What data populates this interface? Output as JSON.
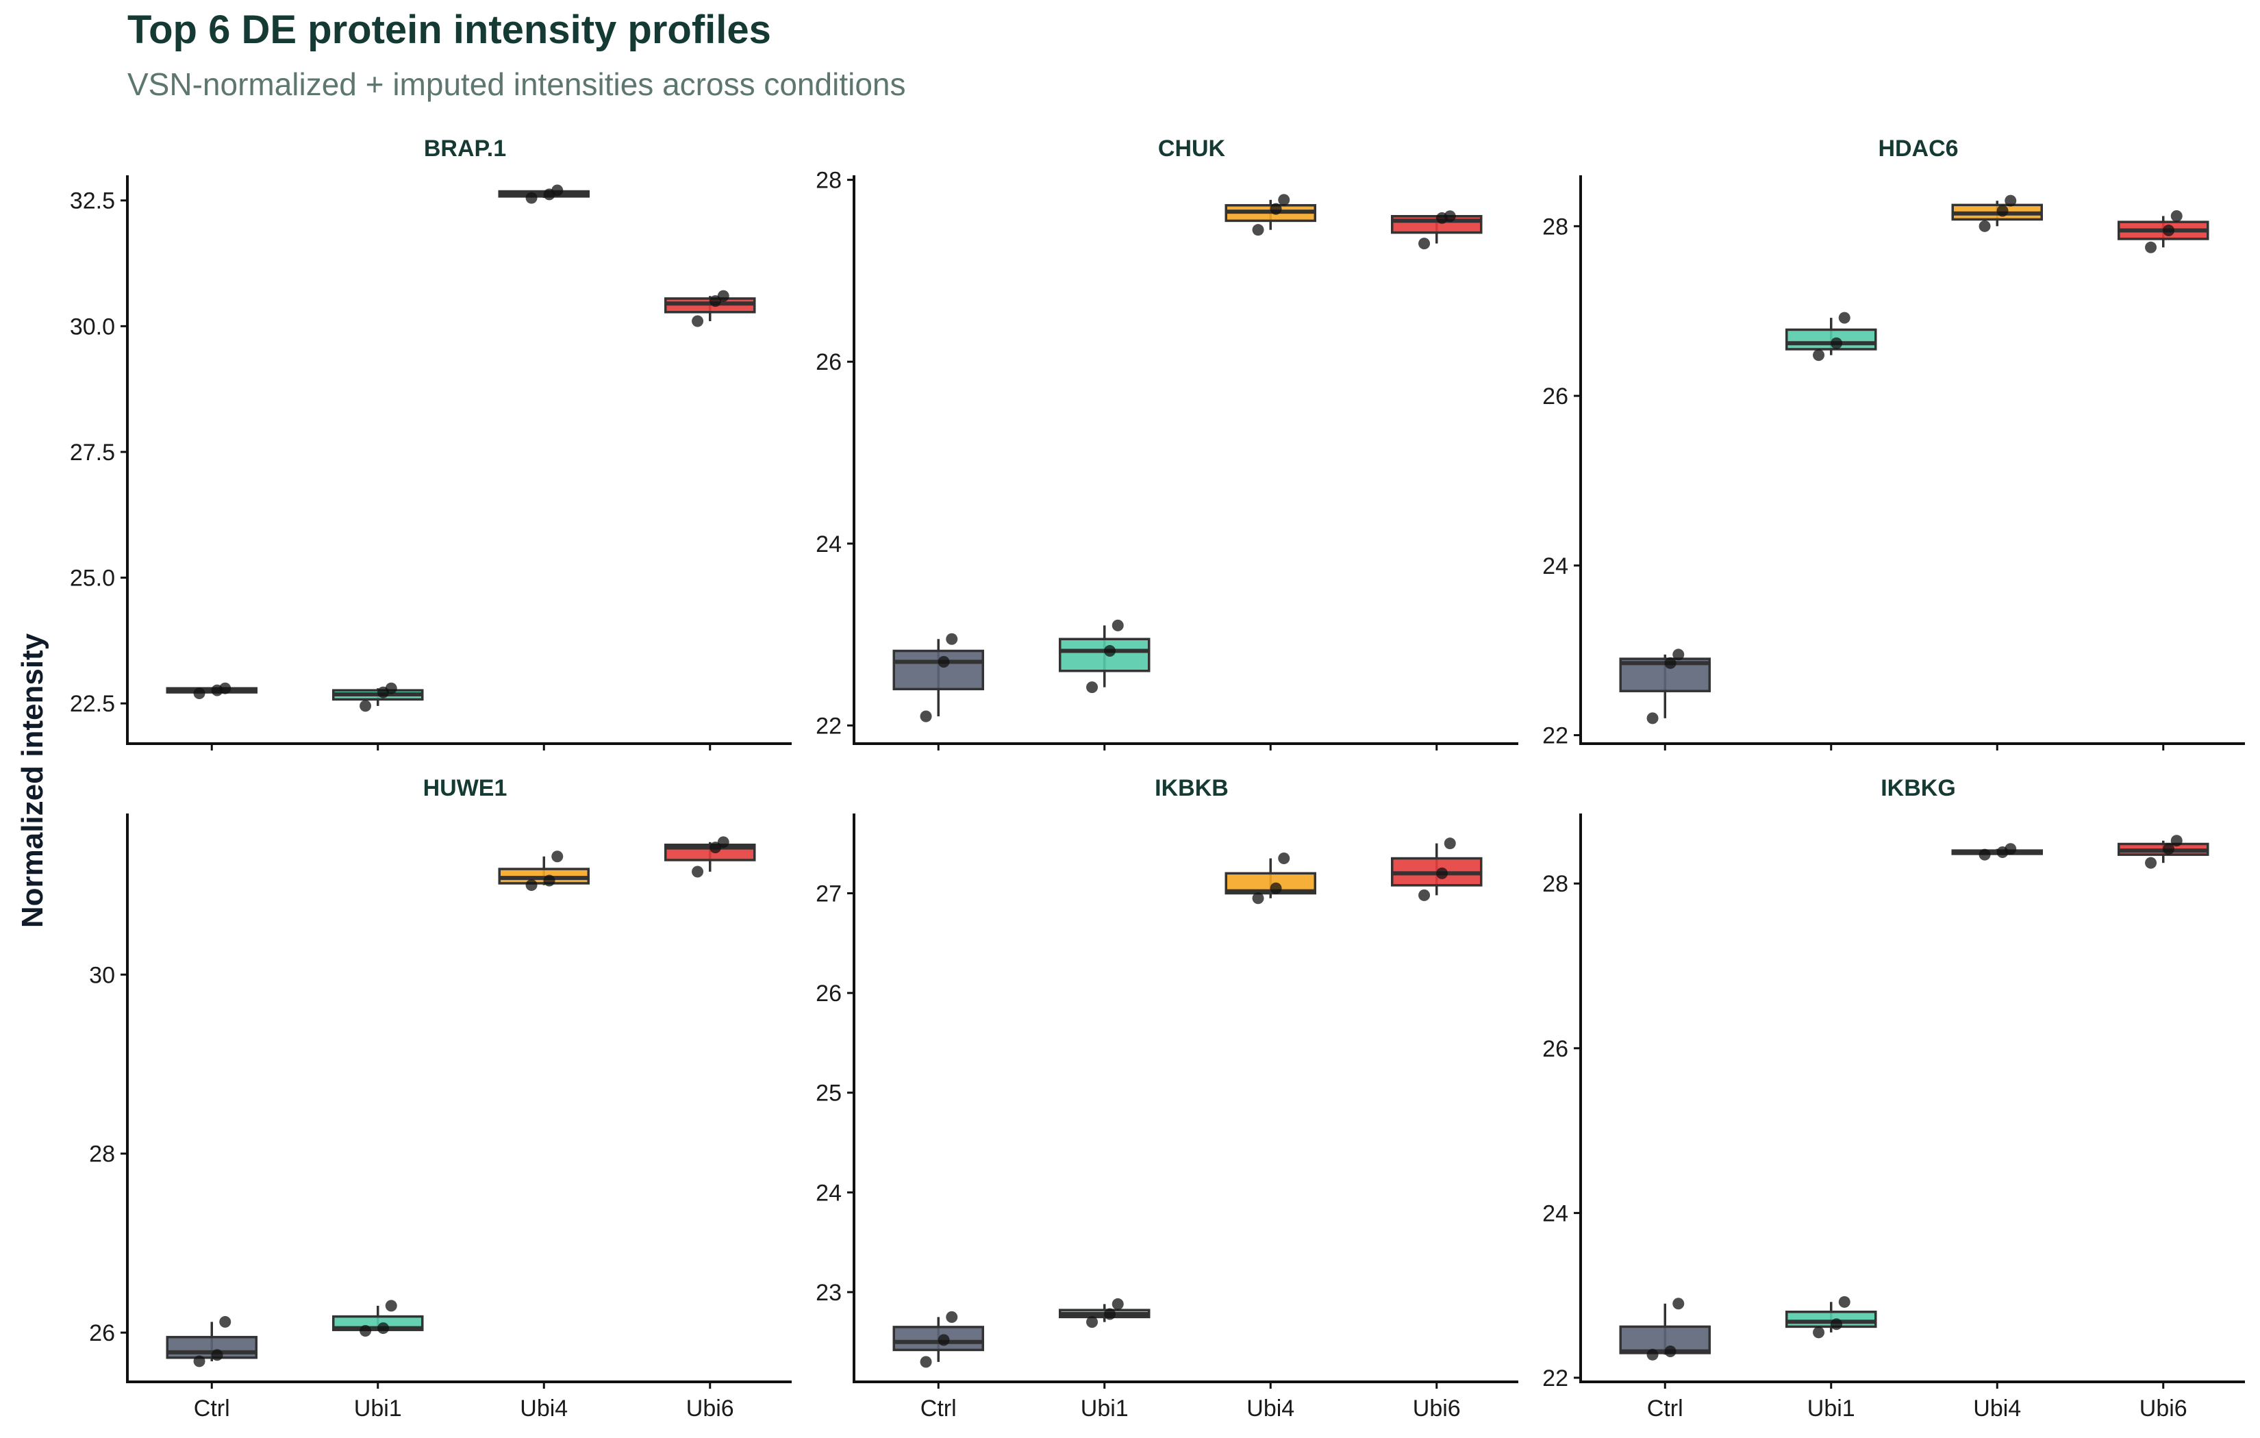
{
  "title": "Top 6 DE protein intensity profiles",
  "subtitle": "VSN-normalized + imputed intensities across conditions",
  "colors": {
    "Ctrl": "#5b6477",
    "Ubi1": "#55ccaa",
    "Ubi4": "#f5a623",
    "Ubi6": "#e63c3c"
  },
  "chart_data": {
    "type": "box",
    "ylabel": "Normalized intensity",
    "xlabel": "",
    "categories": [
      "Ctrl",
      "Ubi1",
      "Ubi4",
      "Ubi6"
    ],
    "facets": [
      {
        "name": "BRAP.1",
        "ylim": [
          21.7,
          33.0
        ],
        "yticks": [
          22.5,
          25.0,
          27.5,
          30.0,
          32.5
        ],
        "yticklabels": [
          "22.5",
          "25.0",
          "27.5",
          "30.0",
          "32.5"
        ],
        "boxes": [
          {
            "q1": 22.72,
            "median": 22.76,
            "q3": 22.8,
            "min": 22.7,
            "max": 22.8,
            "points": [
              22.7,
              22.76,
              22.8
            ]
          },
          {
            "q1": 22.58,
            "median": 22.68,
            "q3": 22.76,
            "min": 22.45,
            "max": 22.8,
            "points": [
              22.45,
              22.72,
              22.8
            ]
          },
          {
            "q1": 32.58,
            "median": 32.62,
            "q3": 32.68,
            "min": 32.55,
            "max": 32.7,
            "points": [
              32.55,
              32.62,
              32.7
            ]
          },
          {
            "q1": 30.28,
            "median": 30.45,
            "q3": 30.55,
            "min": 30.1,
            "max": 30.6,
            "points": [
              30.1,
              30.5,
              30.6
            ]
          }
        ]
      },
      {
        "name": "CHUK",
        "ylim": [
          21.8,
          28.05
        ],
        "yticks": [
          22,
          24,
          26,
          28
        ],
        "yticklabels": [
          "22",
          "24",
          "26",
          "28"
        ],
        "boxes": [
          {
            "q1": 22.4,
            "median": 22.7,
            "q3": 22.82,
            "min": 22.1,
            "max": 22.95,
            "points": [
              22.1,
              22.7,
              22.95
            ]
          },
          {
            "q1": 22.6,
            "median": 22.82,
            "q3": 22.95,
            "min": 22.42,
            "max": 23.1,
            "points": [
              22.42,
              22.82,
              23.1
            ]
          },
          {
            "q1": 27.55,
            "median": 27.65,
            "q3": 27.72,
            "min": 27.45,
            "max": 27.78,
            "points": [
              27.45,
              27.68,
              27.78
            ]
          },
          {
            "q1": 27.42,
            "median": 27.55,
            "q3": 27.6,
            "min": 27.3,
            "max": 27.6,
            "points": [
              27.3,
              27.58,
              27.6
            ]
          }
        ]
      },
      {
        "name": "HDAC6",
        "ylim": [
          21.9,
          28.6
        ],
        "yticks": [
          22,
          24,
          26,
          28
        ],
        "yticklabels": [
          "22",
          "24",
          "26",
          "28"
        ],
        "boxes": [
          {
            "q1": 22.52,
            "median": 22.85,
            "q3": 22.9,
            "min": 22.2,
            "max": 22.95,
            "points": [
              22.2,
              22.85,
              22.95
            ]
          },
          {
            "q1": 26.55,
            "median": 26.62,
            "q3": 26.78,
            "min": 26.48,
            "max": 26.92,
            "points": [
              26.48,
              26.62,
              26.92
            ]
          },
          {
            "q1": 28.08,
            "median": 28.15,
            "q3": 28.25,
            "min": 28.0,
            "max": 28.3,
            "points": [
              28.0,
              28.18,
              28.3
            ]
          },
          {
            "q1": 27.85,
            "median": 27.95,
            "q3": 28.05,
            "min": 27.75,
            "max": 28.12,
            "points": [
              27.75,
              27.95,
              28.12
            ]
          }
        ]
      },
      {
        "name": "HUWE1",
        "ylim": [
          25.45,
          31.8
        ],
        "yticks": [
          26,
          28,
          30
        ],
        "yticklabels": [
          "26",
          "28",
          "30"
        ],
        "boxes": [
          {
            "q1": 25.72,
            "median": 25.78,
            "q3": 25.95,
            "min": 25.68,
            "max": 26.12,
            "points": [
              25.68,
              25.75,
              26.12
            ]
          },
          {
            "q1": 26.03,
            "median": 26.05,
            "q3": 26.18,
            "min": 26.02,
            "max": 26.3,
            "points": [
              26.02,
              26.05,
              26.3
            ]
          },
          {
            "q1": 31.02,
            "median": 31.08,
            "q3": 31.18,
            "min": 31.0,
            "max": 31.32,
            "points": [
              31.0,
              31.05,
              31.32
            ]
          },
          {
            "q1": 31.28,
            "median": 31.42,
            "q3": 31.45,
            "min": 31.15,
            "max": 31.48,
            "points": [
              31.15,
              31.42,
              31.48
            ]
          }
        ]
      },
      {
        "name": "IKBKB",
        "ylim": [
          22.1,
          27.8
        ],
        "yticks": [
          23,
          24,
          25,
          26,
          27
        ],
        "yticklabels": [
          "23",
          "24",
          "25",
          "26",
          "27"
        ],
        "boxes": [
          {
            "q1": 22.42,
            "median": 22.5,
            "q3": 22.65,
            "min": 22.3,
            "max": 22.75,
            "points": [
              22.3,
              22.52,
              22.75
            ]
          },
          {
            "q1": 22.75,
            "median": 22.78,
            "q3": 22.82,
            "min": 22.7,
            "max": 22.88,
            "points": [
              22.7,
              22.78,
              22.88
            ]
          },
          {
            "q1": 27.0,
            "median": 27.02,
            "q3": 27.2,
            "min": 26.95,
            "max": 27.35,
            "points": [
              26.95,
              27.05,
              27.35
            ]
          },
          {
            "q1": 27.08,
            "median": 27.2,
            "q3": 27.35,
            "min": 26.98,
            "max": 27.5,
            "points": [
              26.98,
              27.2,
              27.5
            ]
          }
        ]
      },
      {
        "name": "IKBKG",
        "ylim": [
          21.95,
          28.85
        ],
        "yticks": [
          22,
          24,
          26,
          28
        ],
        "yticklabels": [
          "22",
          "24",
          "26",
          "28"
        ],
        "boxes": [
          {
            "q1": 22.3,
            "median": 22.32,
            "q3": 22.62,
            "min": 22.28,
            "max": 22.9,
            "points": [
              22.28,
              22.32,
              22.9
            ]
          },
          {
            "q1": 22.62,
            "median": 22.68,
            "q3": 22.8,
            "min": 22.55,
            "max": 22.92,
            "points": [
              22.55,
              22.65,
              22.92
            ]
          },
          {
            "q1": 28.36,
            "median": 28.38,
            "q3": 28.4,
            "min": 28.35,
            "max": 28.42,
            "points": [
              28.35,
              28.38,
              28.42
            ]
          },
          {
            "q1": 28.35,
            "median": 28.4,
            "q3": 28.48,
            "min": 28.25,
            "max": 28.52,
            "points": [
              28.25,
              28.42,
              28.52
            ]
          }
        ]
      }
    ]
  }
}
